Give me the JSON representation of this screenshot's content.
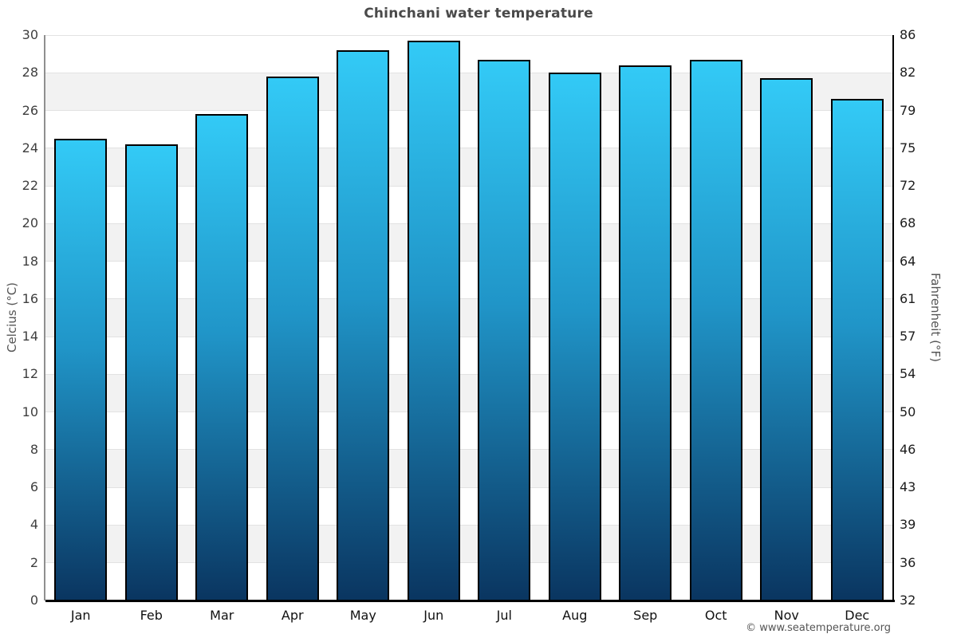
{
  "page": {
    "title": "Chinchani water temperature",
    "credit": "© www.seatemperature.org",
    "background": "#ffffff"
  },
  "chart_data": {
    "type": "bar",
    "title": "Chinchani water temperature",
    "categories": [
      "Jan",
      "Feb",
      "Mar",
      "Apr",
      "May",
      "Jun",
      "Jul",
      "Aug",
      "Sep",
      "Oct",
      "Nov",
      "Dec"
    ],
    "series": [
      {
        "name": "Water temperature (°C)",
        "values": [
          24.5,
          24.2,
          25.8,
          27.8,
          29.2,
          29.7,
          28.7,
          28.0,
          28.4,
          28.7,
          27.7,
          26.6
        ]
      }
    ],
    "xlabel": "",
    "ylabel_left": "Celcius (°C)",
    "ylabel_right": "Fahrenheit (°F)",
    "ylim_celsius": [
      0,
      30
    ],
    "yticks_celsius": [
      0,
      2,
      4,
      6,
      8,
      10,
      12,
      14,
      16,
      18,
      20,
      22,
      24,
      26,
      28,
      30
    ],
    "yticks_fahrenheit_labels": [
      "32",
      "36",
      "39",
      "43",
      "46",
      "50",
      "54",
      "57",
      "61",
      "64",
      "68",
      "72",
      "75",
      "79",
      "82",
      "86"
    ],
    "grid": "alternating horizontal bands every 2°C, light gridline at each tick",
    "legend": "none",
    "colors": {
      "bar_gradient_top": "#33CAF6",
      "bar_gradient_mid": "#2095C8",
      "bar_gradient_bottom": "#0A3560",
      "bar_border": "#000000",
      "band_gray": "#F2F2F2",
      "band_white": "#FFFFFF",
      "gridline": "#E2E2E2",
      "axis_left_line": "#8F8F8F",
      "axis_right_line": "#000000",
      "axis_bottom_line": "#000000",
      "title_color": "#4A4A4A",
      "tick_label_color": "#3F3F3F",
      "month_label_color": "#111111",
      "credit_color": "#555555"
    }
  }
}
